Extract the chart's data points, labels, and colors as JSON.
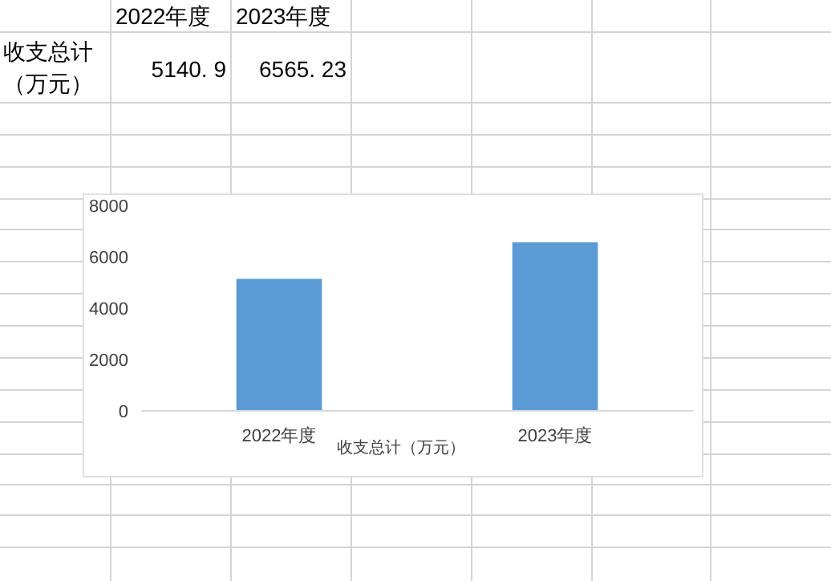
{
  "chart_data": {
    "type": "bar",
    "categories": [
      "2022年度",
      "2023年度"
    ],
    "xlabel": "收支总计（万元）",
    "values": [
      5140.9,
      6565.23
    ],
    "color": "#5b9bd5",
    "ylim": [
      0,
      8000
    ],
    "yticks": [
      0,
      2000,
      4000,
      6000,
      8000
    ],
    "grid": false,
    "annotations": [
      "收支总计（万元）",
      "5140. 9",
      "6565. 23"
    ]
  }
}
